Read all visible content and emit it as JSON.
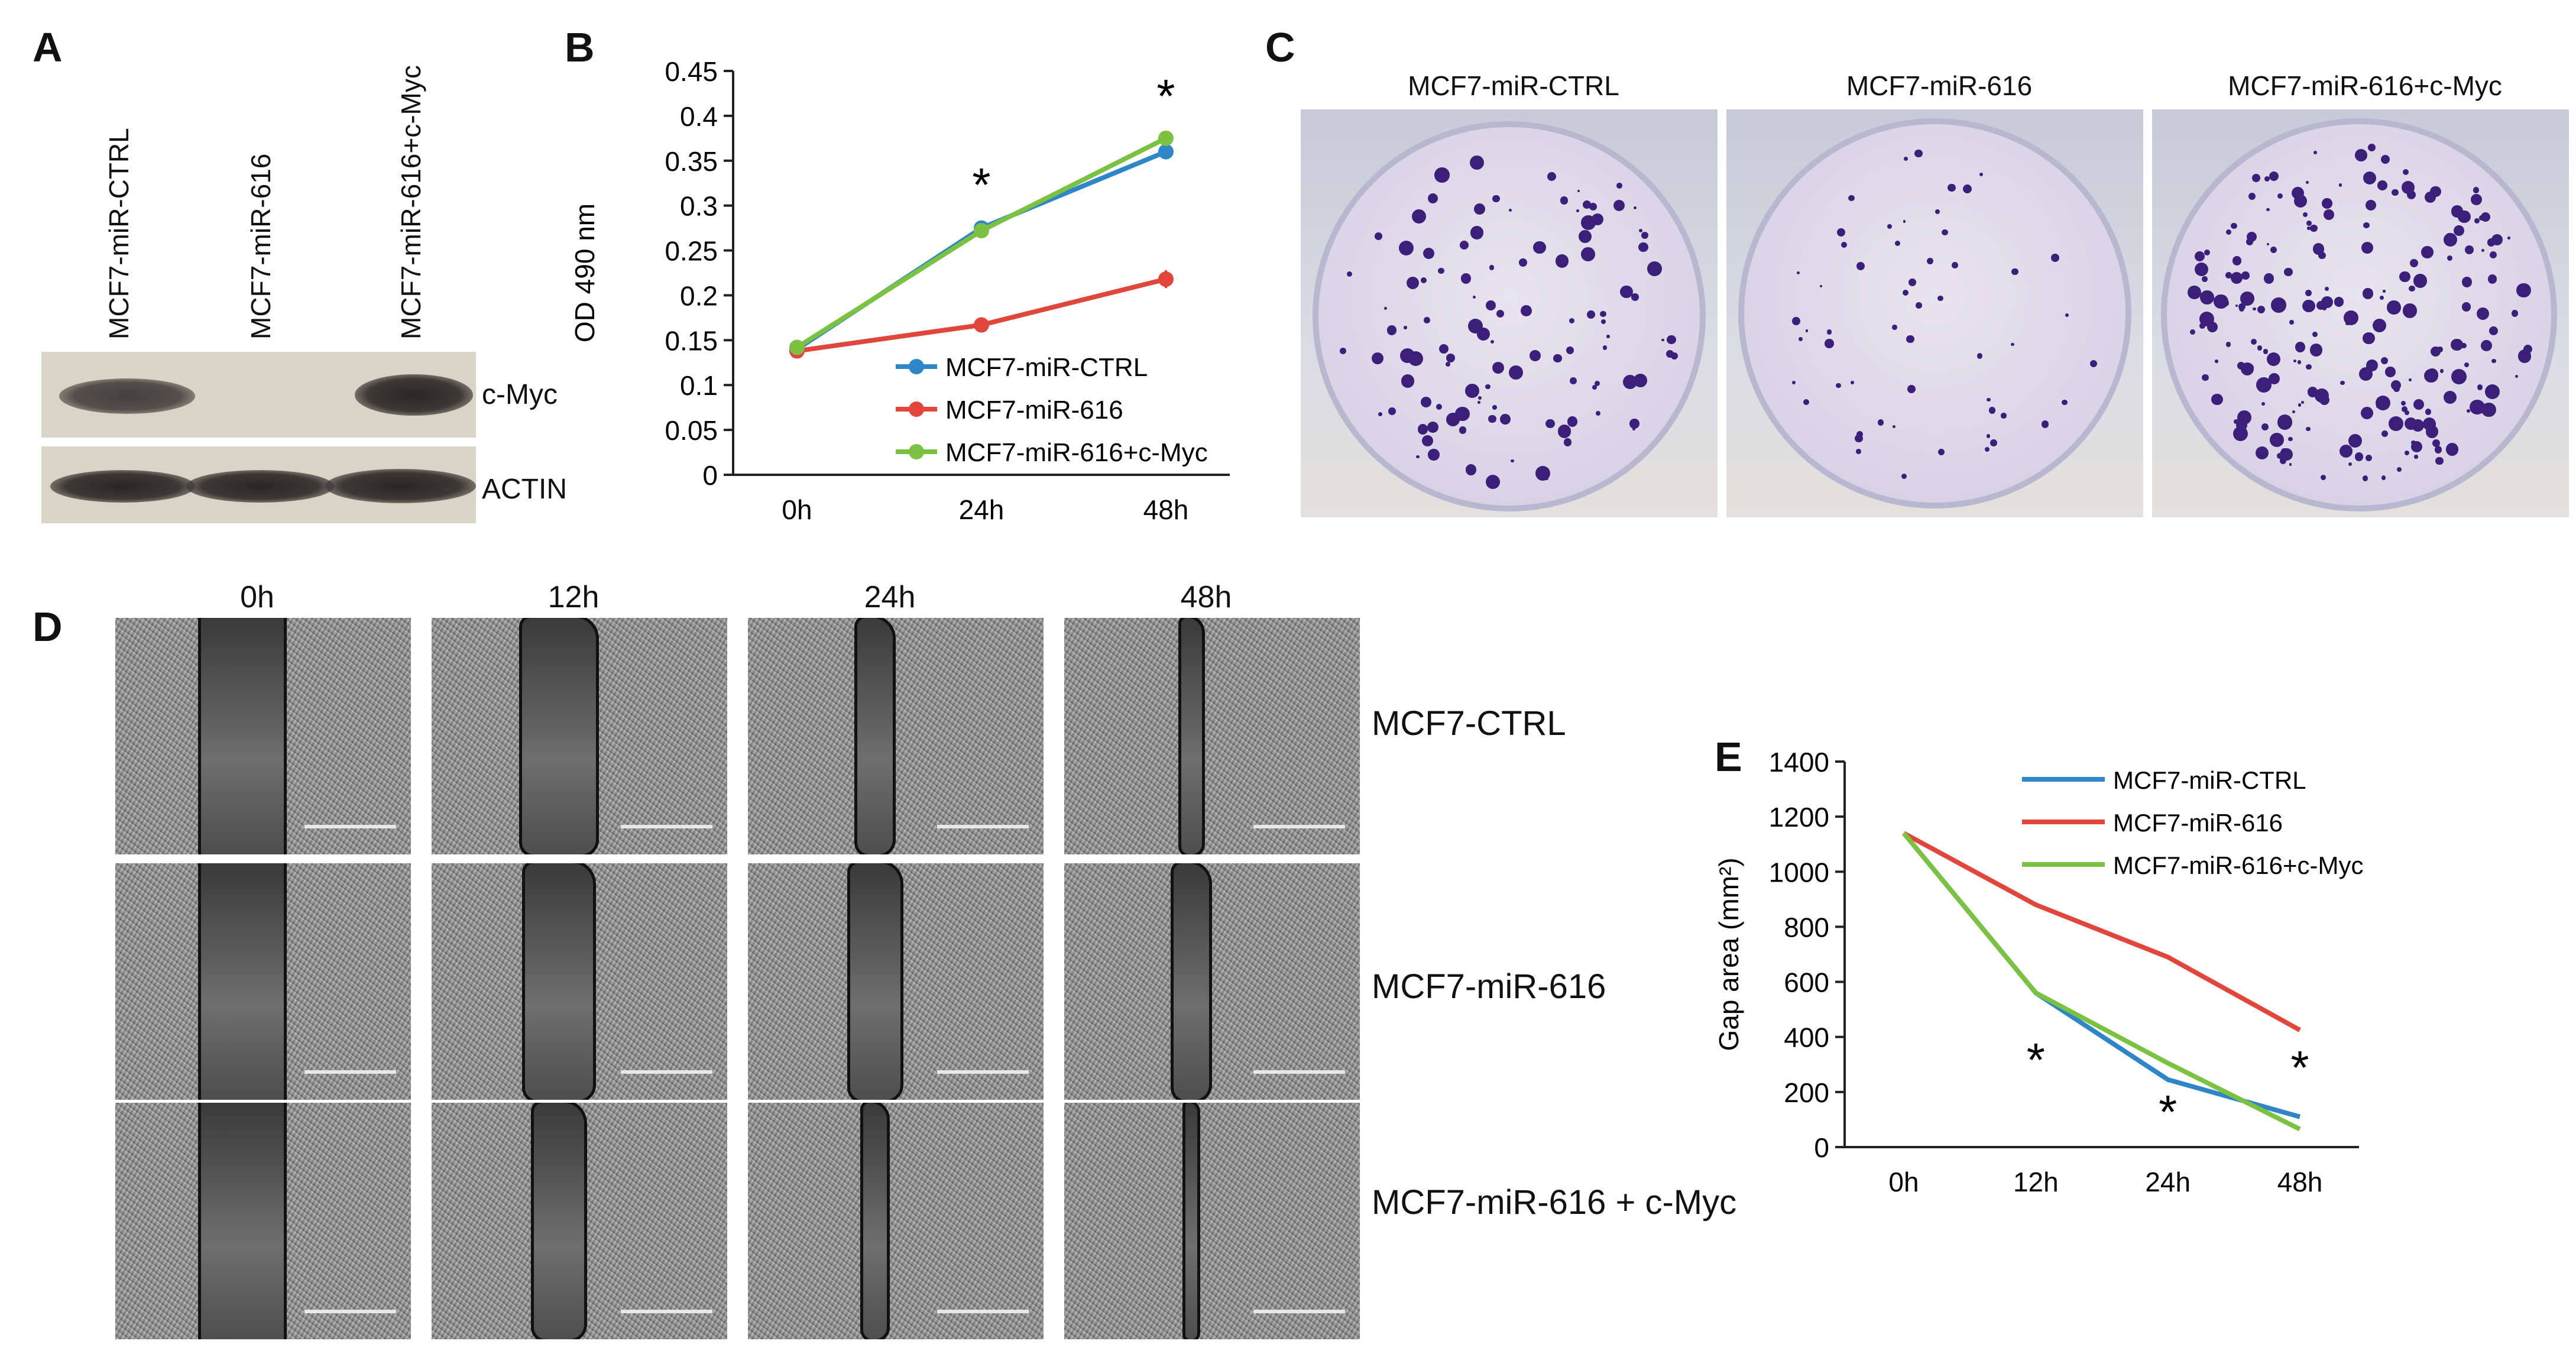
{
  "panels": {
    "A": "A",
    "B": "B",
    "C": "C",
    "D": "D",
    "E": "E"
  },
  "panel_a": {
    "lanes": [
      "MCF7-miR-CTRL",
      "MCF7-miR-616",
      "MCF7-miR-616+c-Myc"
    ],
    "rows": [
      "c-Myc",
      "ACTIN"
    ]
  },
  "panel_c": {
    "titles": [
      "MCF7-miR-CTRL",
      "MCF7-miR-616",
      "MCF7-miR-616+c-Myc"
    ]
  },
  "panel_d": {
    "times": [
      "0h",
      "12h",
      "24h",
      "48h"
    ],
    "rows": [
      "MCF7-CTRL",
      "MCF7-miR-616",
      "MCF7-miR-616 + c-Myc"
    ]
  },
  "chart_data": [
    {
      "panel": "B",
      "type": "line",
      "categories": [
        "0h",
        "24h",
        "48h"
      ],
      "ylabel": "OD 490 nm",
      "ylim": [
        0,
        0.45
      ],
      "yticks": [
        "0",
        "0.05",
        "0.1",
        "0.15",
        "0.2",
        "0.25",
        "0.3",
        "0.35",
        "0.4",
        "0.45"
      ],
      "series": [
        {
          "name": "MCF7-miR-CTRL",
          "color": "#2e86c8",
          "values": [
            0.14,
            0.275,
            0.36
          ],
          "err": [
            0.004,
            0.005,
            0.006
          ]
        },
        {
          "name": "MCF7-miR-616",
          "color": "#e0463c",
          "values": [
            0.138,
            0.167,
            0.218
          ],
          "err": [
            0.004,
            0.006,
            0.01
          ]
        },
        {
          "name": "MCF7-miR-616+c-Myc",
          "color": "#7cc242",
          "values": [
            0.142,
            0.272,
            0.375
          ],
          "err": [
            0.004,
            0.006,
            0.007
          ]
        }
      ],
      "annotations": [
        {
          "at": "24h",
          "text": "*"
        },
        {
          "at": "48h",
          "text": "*"
        }
      ],
      "legend": "right-middle"
    },
    {
      "panel": "E",
      "type": "line",
      "categories": [
        "0h",
        "12h",
        "24h",
        "48h"
      ],
      "ylabel": "Gap area (mm²)",
      "ylim": [
        0,
        1400
      ],
      "yticks": [
        "0",
        "200",
        "400",
        "600",
        "800",
        "1000",
        "1200",
        "1400"
      ],
      "series": [
        {
          "name": "MCF7-miR-CTRL",
          "color": "#2e86c8",
          "values": [
            1140,
            560,
            245,
            110
          ]
        },
        {
          "name": "MCF7-miR-616",
          "color": "#e0463c",
          "values": [
            1140,
            880,
            690,
            425
          ]
        },
        {
          "name": "MCF7-miR-616+c-Myc",
          "color": "#7cc242",
          "values": [
            1140,
            560,
            305,
            65
          ]
        }
      ],
      "annotations": [
        {
          "at": "12h",
          "text": "*"
        },
        {
          "at": "24h",
          "text": "*"
        },
        {
          "at": "48h",
          "text": "*"
        }
      ],
      "legend": "top-right"
    }
  ]
}
